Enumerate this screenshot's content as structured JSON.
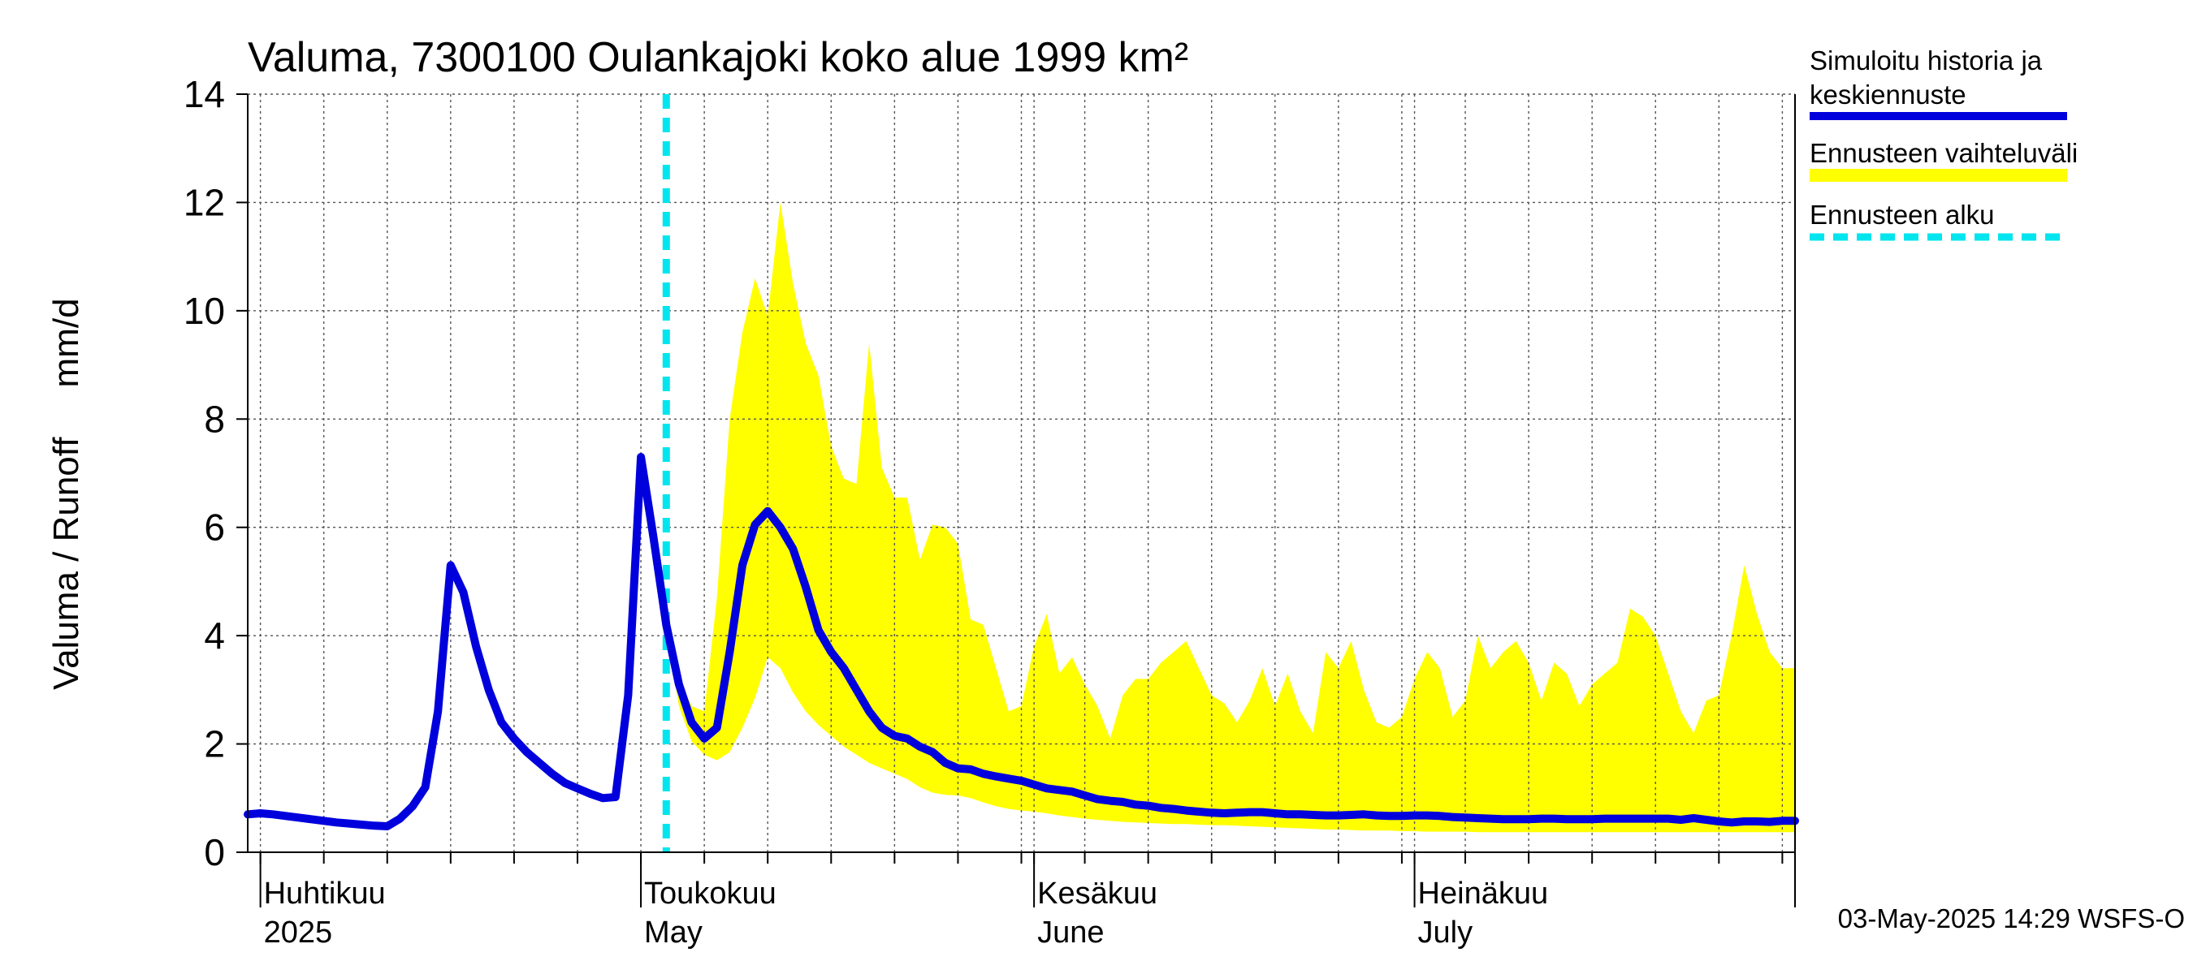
{
  "chart_data": {
    "type": "area",
    "title": "Valuma, 7300100 Oulankajoki koko alue 1999 km²",
    "ylabel": "Valuma / Runoff     mm/d",
    "ylim": [
      0,
      14
    ],
    "yticks": [
      0,
      2,
      4,
      6,
      8,
      10,
      12,
      14
    ],
    "x_start": "2025-03-31",
    "x_end": "2025-07-31",
    "grid": true,
    "month_labels": [
      {
        "date": "2025-04-01",
        "fi": "Huhtikuu",
        "en": "2025"
      },
      {
        "date": "2025-05-01",
        "fi": "Toukokuu",
        "en": "May"
      },
      {
        "date": "2025-06-01",
        "fi": "Kesäkuu",
        "en": "June"
      },
      {
        "date": "2025-07-01",
        "fi": "Heinäkuu",
        "en": "July"
      }
    ],
    "forecast_start": "2025-05-03",
    "footer": "03-May-2025 14:29 WSFS-O",
    "legend": {
      "placement": "right",
      "entries": [
        {
          "label_line1": "Simuloitu historia ja",
          "label_line2": "keskiennuste",
          "color": "#0000dd",
          "style": "solid"
        },
        {
          "label_line1": "Ennusteen vaihteluväli",
          "label_line2": "",
          "color": "#ffff00",
          "style": "band"
        },
        {
          "label_line1": "Ennusteen alku",
          "label_line2": "",
          "color": "#00e5ee",
          "style": "dashed"
        }
      ]
    },
    "colors": {
      "series": "#0000dd",
      "band": "#ffff00",
      "forecast_line": "#00e5ee",
      "grid": "#555555"
    },
    "series": {
      "x": [
        "2025-03-31",
        "2025-04-01",
        "2025-04-02",
        "2025-04-03",
        "2025-04-04",
        "2025-04-05",
        "2025-04-06",
        "2025-04-07",
        "2025-04-08",
        "2025-04-09",
        "2025-04-10",
        "2025-04-11",
        "2025-04-12",
        "2025-04-13",
        "2025-04-14",
        "2025-04-15",
        "2025-04-16",
        "2025-04-17",
        "2025-04-18",
        "2025-04-19",
        "2025-04-20",
        "2025-04-21",
        "2025-04-22",
        "2025-04-23",
        "2025-04-24",
        "2025-04-25",
        "2025-04-26",
        "2025-04-27",
        "2025-04-28",
        "2025-04-29",
        "2025-04-30",
        "2025-05-01",
        "2025-05-02",
        "2025-05-03",
        "2025-05-04",
        "2025-05-05",
        "2025-05-06",
        "2025-05-07",
        "2025-05-08",
        "2025-05-09",
        "2025-05-10",
        "2025-05-11",
        "2025-05-12",
        "2025-05-13",
        "2025-05-14",
        "2025-05-15",
        "2025-05-16",
        "2025-05-17",
        "2025-05-18",
        "2025-05-19",
        "2025-05-20",
        "2025-05-21",
        "2025-05-22",
        "2025-05-23",
        "2025-05-24",
        "2025-05-25",
        "2025-05-26",
        "2025-05-27",
        "2025-05-28",
        "2025-05-29",
        "2025-05-30",
        "2025-05-31",
        "2025-06-01",
        "2025-06-02",
        "2025-06-03",
        "2025-06-04",
        "2025-06-05",
        "2025-06-06",
        "2025-06-07",
        "2025-06-08",
        "2025-06-09",
        "2025-06-10",
        "2025-06-11",
        "2025-06-12",
        "2025-06-13",
        "2025-06-14",
        "2025-06-15",
        "2025-06-16",
        "2025-06-17",
        "2025-06-18",
        "2025-06-19",
        "2025-06-20",
        "2025-06-21",
        "2025-06-22",
        "2025-06-23",
        "2025-06-24",
        "2025-06-25",
        "2025-06-26",
        "2025-06-27",
        "2025-06-28",
        "2025-06-29",
        "2025-06-30",
        "2025-07-01",
        "2025-07-02",
        "2025-07-03",
        "2025-07-04",
        "2025-07-05",
        "2025-07-06",
        "2025-07-07",
        "2025-07-08",
        "2025-07-09",
        "2025-07-10",
        "2025-07-11",
        "2025-07-12",
        "2025-07-13",
        "2025-07-14",
        "2025-07-15",
        "2025-07-16",
        "2025-07-17",
        "2025-07-18",
        "2025-07-19",
        "2025-07-20",
        "2025-07-21",
        "2025-07-22",
        "2025-07-23",
        "2025-07-24",
        "2025-07-25",
        "2025-07-26",
        "2025-07-27",
        "2025-07-28",
        "2025-07-29",
        "2025-07-30",
        "2025-07-31"
      ],
      "mean": [
        0.7,
        0.72,
        0.7,
        0.67,
        0.64,
        0.61,
        0.58,
        0.55,
        0.53,
        0.51,
        0.49,
        0.48,
        0.62,
        0.85,
        1.2,
        2.6,
        5.3,
        4.8,
        3.8,
        3.0,
        2.4,
        2.1,
        1.85,
        1.65,
        1.45,
        1.28,
        1.18,
        1.08,
        1.0,
        1.02,
        2.9,
        7.3,
        5.8,
        4.2,
        3.1,
        2.4,
        2.1,
        2.3,
        3.7,
        5.3,
        6.05,
        6.3,
        6.0,
        5.6,
        4.9,
        4.1,
        3.7,
        3.4,
        3.0,
        2.6,
        2.3,
        2.15,
        2.1,
        1.95,
        1.85,
        1.65,
        1.55,
        1.53,
        1.45,
        1.4,
        1.36,
        1.32,
        1.25,
        1.18,
        1.15,
        1.12,
        1.05,
        0.98,
        0.95,
        0.93,
        0.88,
        0.86,
        0.82,
        0.8,
        0.77,
        0.75,
        0.73,
        0.72,
        0.73,
        0.74,
        0.74,
        0.72,
        0.7,
        0.7,
        0.69,
        0.68,
        0.68,
        0.69,
        0.7,
        0.68,
        0.67,
        0.67,
        0.68,
        0.68,
        0.67,
        0.65,
        0.64,
        0.63,
        0.62,
        0.61,
        0.61,
        0.61,
        0.62,
        0.62,
        0.61,
        0.61,
        0.61,
        0.62,
        0.62,
        0.62,
        0.62,
        0.62,
        0.62,
        0.6,
        0.63,
        0.6,
        0.57,
        0.55,
        0.57,
        0.57,
        0.56,
        0.58,
        0.58
      ],
      "band_start_index": 31,
      "band_low": [
        7.3,
        6.0,
        4.1,
        2.7,
        2.05,
        1.8,
        1.7,
        1.85,
        2.3,
        2.85,
        3.6,
        3.4,
        2.95,
        2.6,
        2.35,
        2.15,
        1.95,
        1.8,
        1.65,
        1.55,
        1.45,
        1.35,
        1.2,
        1.1,
        1.06,
        1.05,
        1.0,
        0.92,
        0.85,
        0.8,
        0.77,
        0.75,
        0.72,
        0.68,
        0.65,
        0.62,
        0.6,
        0.58,
        0.56,
        0.55,
        0.54,
        0.53,
        0.52,
        0.52,
        0.51,
        0.5,
        0.5,
        0.49,
        0.48,
        0.47,
        0.46,
        0.45,
        0.44,
        0.43,
        0.42,
        0.42,
        0.41,
        0.4,
        0.4,
        0.4,
        0.39,
        0.39,
        0.38,
        0.38,
        0.38,
        0.38,
        0.37,
        0.37,
        0.37,
        0.37,
        0.37,
        0.37,
        0.37,
        0.37,
        0.37,
        0.37,
        0.37,
        0.37,
        0.37,
        0.37,
        0.37,
        0.37,
        0.37,
        0.37,
        0.37,
        0.37,
        0.37,
        0.37,
        0.37,
        0.37,
        0.37,
        0.37
      ],
      "band_high": [
        7.3,
        6.1,
        4.4,
        3.2,
        2.7,
        2.6,
        4.7,
        8.0,
        9.6,
        10.6,
        9.9,
        12.0,
        10.5,
        9.4,
        8.8,
        7.5,
        6.9,
        6.8,
        9.4,
        7.1,
        6.55,
        6.55,
        5.4,
        6.05,
        6.0,
        5.7,
        4.3,
        4.2,
        3.4,
        2.6,
        2.7,
        3.8,
        4.4,
        3.3,
        3.6,
        3.1,
        2.7,
        2.1,
        2.9,
        3.2,
        3.2,
        3.5,
        3.7,
        3.9,
        3.4,
        2.9,
        2.75,
        2.4,
        2.8,
        3.4,
        2.7,
        3.3,
        2.6,
        2.2,
        3.7,
        3.4,
        3.9,
        3.0,
        2.4,
        2.3,
        2.5,
        3.2,
        3.7,
        3.4,
        2.5,
        2.8,
        4.0,
        3.4,
        3.7,
        3.9,
        3.5,
        2.8,
        3.5,
        3.3,
        2.7,
        3.1,
        3.3,
        3.5,
        4.5,
        4.35,
        4.0,
        3.3,
        2.6,
        2.2,
        2.8,
        2.9,
        4.0,
        5.3,
        4.4,
        3.7,
        3.4,
        3.4
      ]
    }
  }
}
